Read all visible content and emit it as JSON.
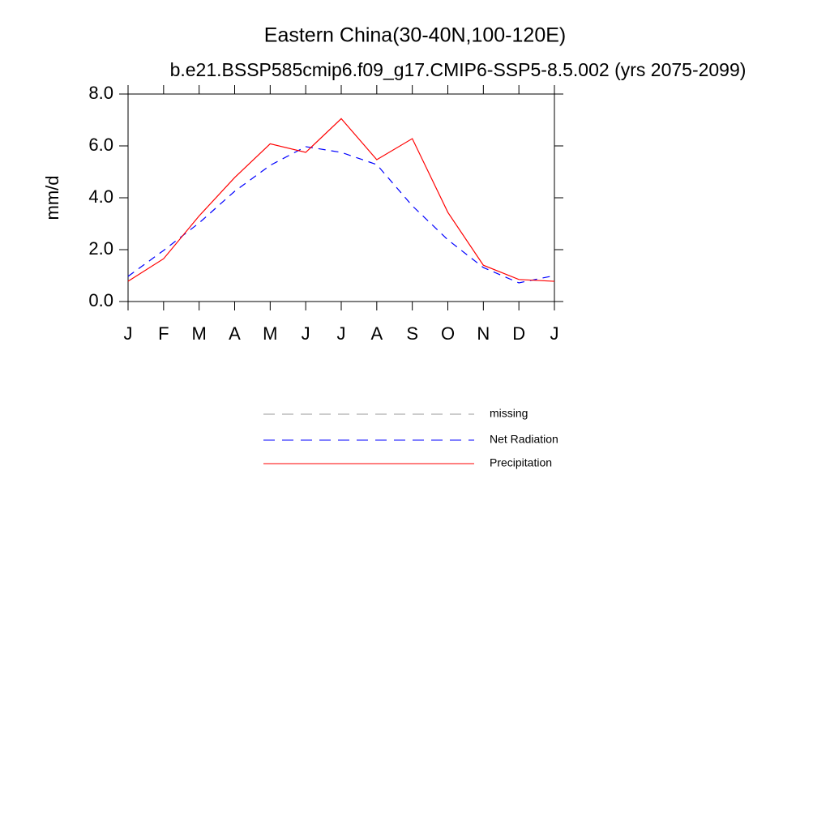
{
  "chart_data": {
    "type": "line",
    "title": "Eastern China(30-40N,100-120E)",
    "subtitle": "b.e21.BSSP585cmip6.f09_g17.CMIP6-SSP5-8.5.002 (yrs 2075-2099)",
    "y_label": "mm/d",
    "categories": [
      "J",
      "F",
      "M",
      "A",
      "M",
      "J",
      "J",
      "A",
      "S",
      "O",
      "N",
      "D",
      "J"
    ],
    "ylim": [
      0,
      8
    ],
    "yticks": [
      {
        "value": 0,
        "label": "0.0"
      },
      {
        "value": 2,
        "label": "2.0"
      },
      {
        "value": 4,
        "label": "4.0"
      },
      {
        "value": 6,
        "label": "6.0"
      },
      {
        "value": 8,
        "label": "8.0"
      }
    ],
    "series": [
      {
        "name": "missing",
        "color": "#999999",
        "dash": true,
        "values": [
          null,
          null,
          null,
          null,
          null,
          null,
          null,
          null,
          null,
          null,
          null,
          null,
          null
        ]
      },
      {
        "name": "Net Radiation",
        "color": "#0000ff",
        "dash": true,
        "values": [
          0.97,
          1.97,
          3.03,
          4.25,
          5.25,
          5.97,
          5.75,
          5.28,
          3.69,
          2.38,
          1.31,
          0.72,
          1.0
        ]
      },
      {
        "name": "Precipitation",
        "color": "#ff0000",
        "dash": false,
        "values": [
          0.78,
          1.65,
          3.3,
          4.78,
          6.08,
          5.75,
          7.05,
          5.47,
          6.28,
          3.44,
          1.4,
          0.85,
          0.78
        ]
      }
    ]
  }
}
